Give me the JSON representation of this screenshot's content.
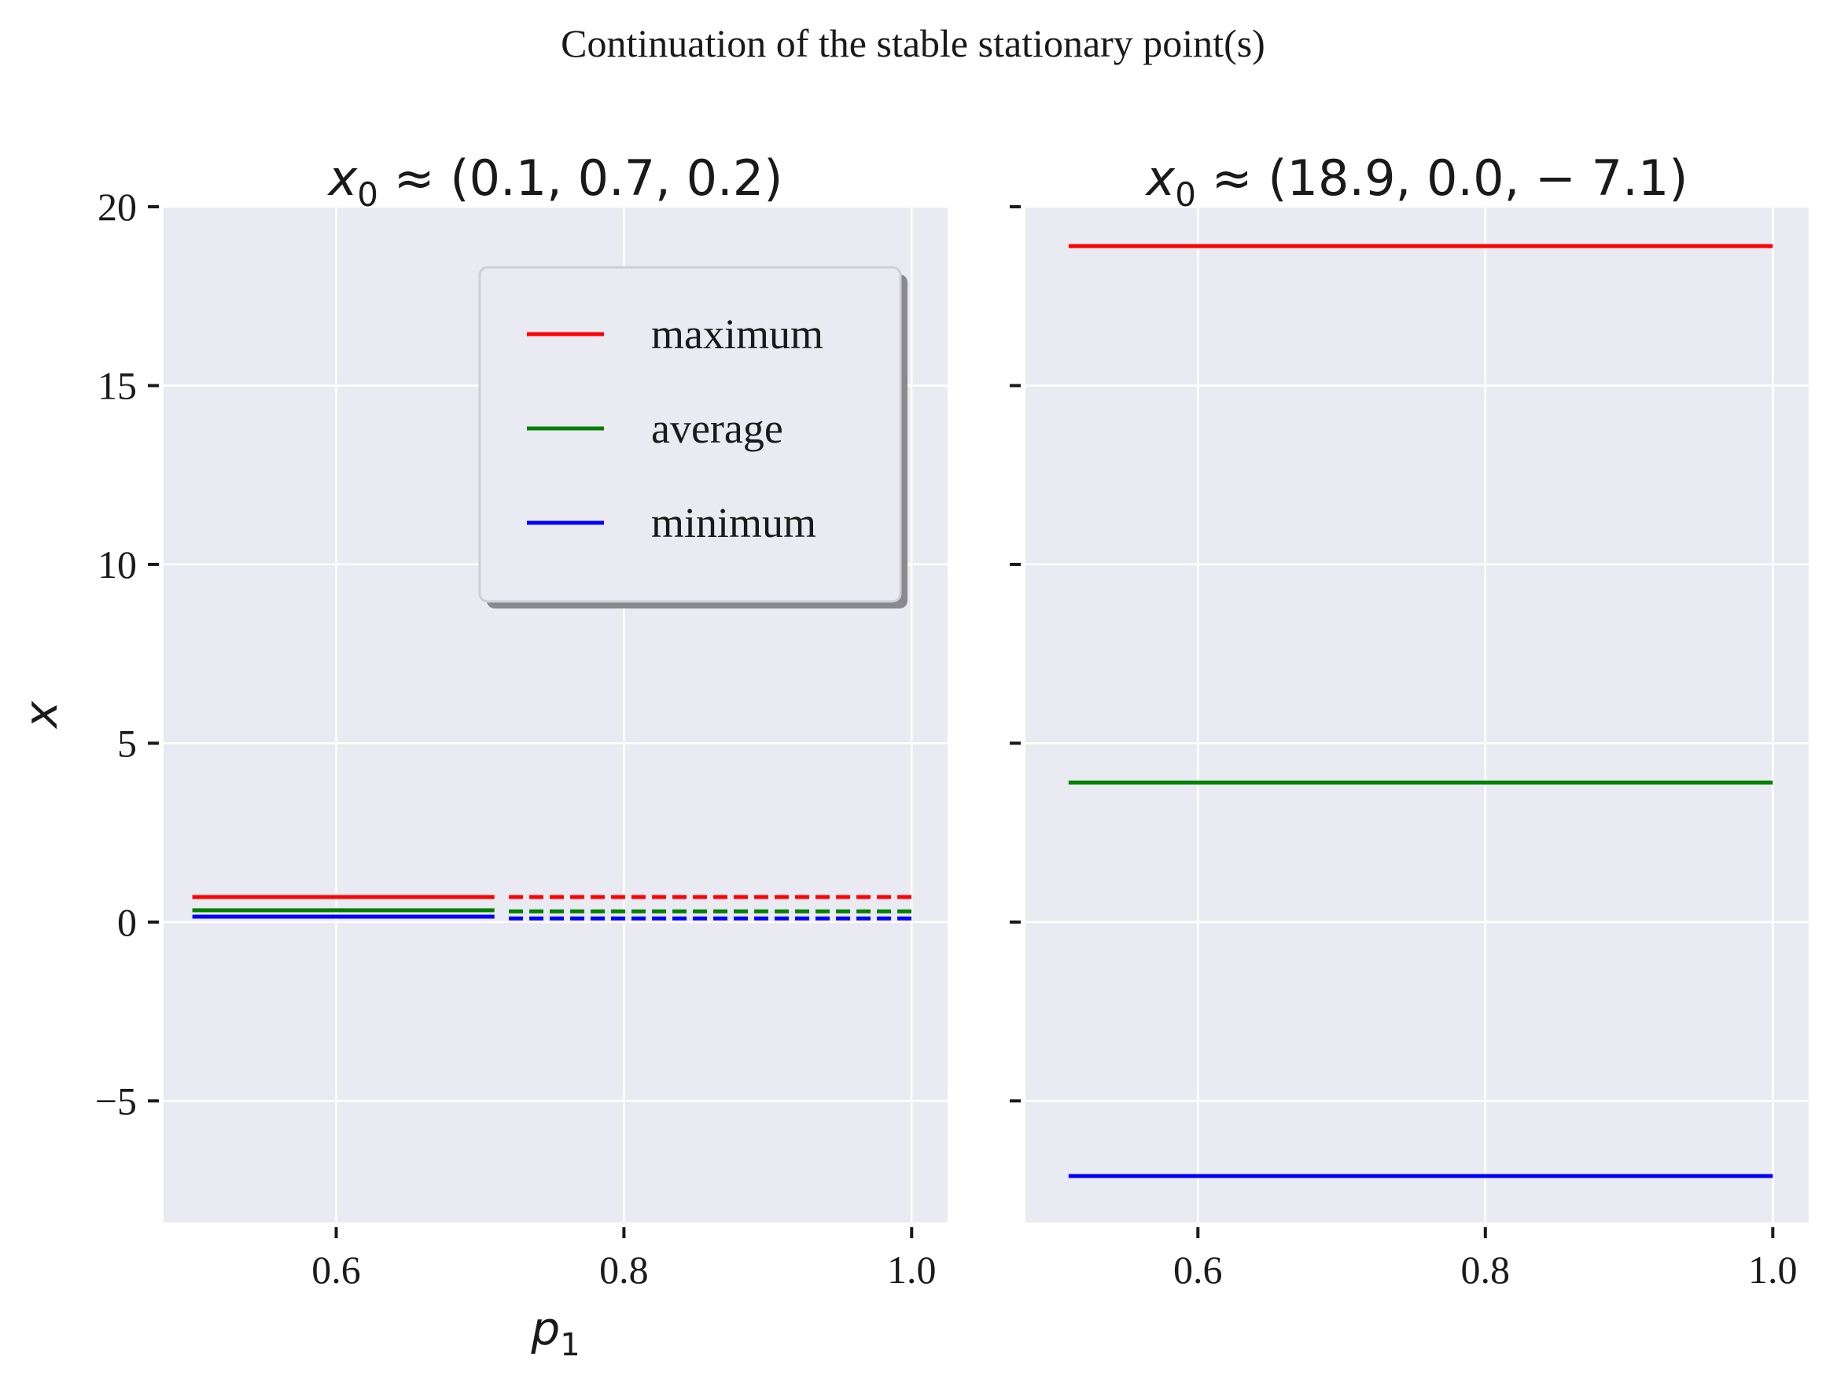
{
  "figure": {
    "suptitle": "Continuation of the stable stationary point(s)"
  },
  "chart_data": [
    {
      "type": "line",
      "title": "x_0 ≈ (0.1, 0.7, 0.2)",
      "title_parts": {
        "base": "x",
        "sub": "0",
        "rest": " ≈ (0.1, 0.7, 0.2)"
      },
      "xlabel": {
        "base": "p",
        "sub": "1"
      },
      "ylabel": "x",
      "xlim": [
        0.48,
        1.025
      ],
      "ylim": [
        -8.4,
        20
      ],
      "xticks": [
        0.6,
        0.8,
        1.0
      ],
      "xtick_labels": [
        "0.6",
        "0.8",
        "1.0"
      ],
      "yticks": [
        -5,
        0,
        5,
        10,
        15,
        20
      ],
      "ytick_labels": [
        "−5",
        "0",
        "5",
        "10",
        "15",
        "20"
      ],
      "grid": true,
      "legend": {
        "position": "upper-center",
        "entries": [
          {
            "label": "maximum",
            "color": "#ff0000"
          },
          {
            "label": "average",
            "color": "#008000"
          },
          {
            "label": "minimum",
            "color": "#0000ff"
          }
        ]
      },
      "series": [
        {
          "name": "maximum",
          "color": "#ff0000",
          "style": "solid",
          "x": [
            0.5,
            0.71
          ],
          "y": [
            0.7,
            0.7
          ]
        },
        {
          "name": "maximum",
          "color": "#ff0000",
          "style": "dashed",
          "x": [
            0.72,
            1.0
          ],
          "y": [
            0.7,
            0.7
          ]
        },
        {
          "name": "average",
          "color": "#008000",
          "style": "solid",
          "x": [
            0.5,
            0.71
          ],
          "y": [
            0.33,
            0.33
          ]
        },
        {
          "name": "average",
          "color": "#008000",
          "style": "dashed",
          "x": [
            0.72,
            1.0
          ],
          "y": [
            0.3,
            0.3
          ]
        },
        {
          "name": "minimum",
          "color": "#0000ff",
          "style": "solid",
          "x": [
            0.5,
            0.71
          ],
          "y": [
            0.15,
            0.15
          ]
        },
        {
          "name": "minimum",
          "color": "#0000ff",
          "style": "dashed",
          "x": [
            0.72,
            1.0
          ],
          "y": [
            0.1,
            0.1
          ]
        }
      ]
    },
    {
      "type": "line",
      "title": "x_0 ≈ (18.9, 0.0, −7.1)",
      "title_parts": {
        "base": "x",
        "sub": "0",
        "rest": " ≈ (18.9, 0.0, − 7.1)"
      },
      "xlim": [
        0.48,
        1.025
      ],
      "ylim": [
        -8.4,
        20
      ],
      "xticks": [
        0.6,
        0.8,
        1.0
      ],
      "xtick_labels": [
        "0.6",
        "0.8",
        "1.0"
      ],
      "yticks": [
        -5,
        0,
        5,
        10,
        15,
        20
      ],
      "grid": true,
      "series": [
        {
          "name": "maximum",
          "color": "#ff0000",
          "style": "solid",
          "x": [
            0.51,
            1.0
          ],
          "y": [
            18.9,
            18.9
          ]
        },
        {
          "name": "average",
          "color": "#008000",
          "style": "solid",
          "x": [
            0.51,
            1.0
          ],
          "y": [
            3.9,
            3.9
          ]
        },
        {
          "name": "minimum",
          "color": "#0000ff",
          "style": "solid",
          "x": [
            0.51,
            1.0
          ],
          "y": [
            -7.1,
            -7.1
          ]
        }
      ]
    }
  ]
}
